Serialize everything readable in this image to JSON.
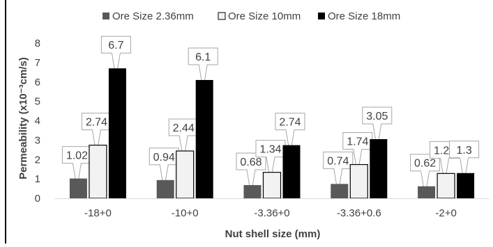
{
  "chart_data": {
    "type": "bar",
    "title": "",
    "xlabel": "Nut shell size (mm)",
    "ylabel": "Permeability (x10⁻³cm/s)",
    "ylim": [
      0,
      8
    ],
    "yticks": [
      0,
      1,
      2,
      3,
      4,
      5,
      6,
      7,
      8
    ],
    "grid": false,
    "legend_position": "top",
    "categories": [
      "-18+0",
      "-10+0",
      "-3.36+0",
      "-3.36+0.6",
      "-2+0"
    ],
    "series": [
      {
        "name": "Ore Size 2.36mm",
        "color": "#595959",
        "values": [
          1.02,
          0.94,
          0.68,
          0.74,
          0.62
        ],
        "labels": [
          "1.02",
          "0.94",
          "0.68",
          "0.74",
          "0.62"
        ]
      },
      {
        "name": "Ore Size 10mm",
        "color": "#f2f2f2",
        "values": [
          2.74,
          2.44,
          1.34,
          1.74,
          1.28
        ],
        "labels": [
          "2.74",
          "2.44",
          "1.34",
          "1.74",
          "1.28"
        ]
      },
      {
        "name": "Ore Size 18mm",
        "color": "#000000",
        "values": [
          6.7,
          6.1,
          2.74,
          3.05,
          1.3
        ],
        "labels": [
          "6.7",
          "6.1",
          "2.74",
          "3.05",
          "1.3"
        ]
      }
    ]
  }
}
